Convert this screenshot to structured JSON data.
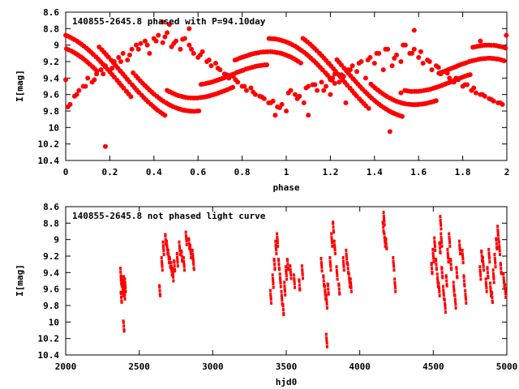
{
  "colors": {
    "series": "#ff0000",
    "axis": "#000000",
    "background": "#ffffff"
  },
  "chart_data": [
    {
      "type": "scatter",
      "title": "140855-2645.8 phased with P=94.10day",
      "xlabel": "phase",
      "ylabel": "I[mag]",
      "xlim": [
        0,
        2
      ],
      "ylim": [
        10.4,
        8.6
      ],
      "y_inverted": true,
      "xticks": [
        "0",
        "0.2",
        "0.4",
        "0.6",
        "0.8",
        "1",
        "1.2",
        "1.4",
        "1.6",
        "1.8",
        "2"
      ],
      "yticks": [
        "8.6",
        "8.8",
        "9",
        "9.2",
        "9.4",
        "9.6",
        "9.8",
        "10",
        "10.2",
        "10.4"
      ],
      "marker": "filled-circle",
      "series": [
        {
          "curve": {
            "period_x": 1.0,
            "mean": 9.38,
            "amplitude": 0.34,
            "min_phase": 0.5
          },
          "x": [
            0.0,
            0.02,
            0.04,
            0.06,
            0.08,
            0.1,
            0.12,
            0.14,
            0.16,
            0.18,
            0.2,
            0.22,
            0.24,
            0.26,
            0.28,
            0.3,
            0.32,
            0.34,
            0.36,
            0.38,
            0.4,
            0.42,
            0.44,
            0.46,
            0.48,
            0.5,
            0.52,
            0.54,
            0.56,
            0.58,
            0.6,
            0.62,
            0.64,
            0.66,
            0.68,
            0.7,
            0.72,
            0.74,
            0.76,
            0.78,
            0.8,
            0.82,
            0.84,
            0.86,
            0.88,
            0.9,
            0.92,
            0.94,
            0.96,
            0.98,
            1.0,
            1.02,
            1.04,
            1.06,
            1.08,
            1.1,
            1.12,
            1.14,
            1.16,
            1.18,
            1.2,
            1.22,
            1.24,
            1.26,
            1.28,
            1.3,
            1.32,
            1.34,
            1.36,
            1.38,
            1.4,
            1.42,
            1.44,
            1.46,
            1.48,
            1.5,
            1.52,
            1.54,
            1.56,
            1.58,
            1.6,
            1.62,
            1.64,
            1.66,
            1.68,
            1.7,
            1.72,
            1.74,
            1.76,
            1.78,
            1.8,
            1.82,
            1.84,
            1.86,
            1.88,
            1.9,
            1.92,
            1.94,
            1.96,
            1.98,
            0.01,
            0.05,
            0.09,
            0.13,
            0.17,
            0.21,
            0.25,
            0.29,
            0.33,
            0.37,
            0.41,
            0.45,
            0.49,
            0.53,
            0.57,
            0.61,
            0.65,
            0.69,
            0.73,
            0.77,
            0.81,
            0.85,
            0.89,
            0.93,
            0.97,
            1.01,
            1.05,
            1.09,
            1.13,
            1.17,
            1.21,
            1.25,
            1.29,
            1.33,
            1.37,
            1.41,
            1.45,
            1.49,
            1.53,
            1.57,
            1.61,
            1.65,
            1.69,
            1.73,
            1.77,
            1.81,
            1.85,
            1.89,
            1.93,
            1.97,
            0.18,
            0.47,
            0.44,
            0.56,
            1.47,
            1.58,
            1.88,
            1.52,
            1.1,
            1.2,
            1.27,
            0.95
          ],
          "y": [
            9.42,
            9.72,
            9.62,
            9.55,
            9.5,
            9.4,
            9.45,
            9.35,
            9.3,
            9.25,
            9.32,
            9.2,
            9.15,
            9.1,
            9.18,
            9.05,
            9.0,
            8.98,
            8.95,
            9.1,
            8.92,
            8.88,
            8.97,
            8.85,
            9.02,
            8.95,
            9.05,
            8.92,
            9.0,
            9.1,
            9.15,
            9.08,
            9.2,
            9.25,
            9.22,
            9.3,
            9.35,
            9.4,
            9.38,
            9.45,
            9.5,
            9.55,
            9.52,
            9.6,
            9.62,
            9.65,
            9.7,
            9.68,
            9.75,
            9.72,
            9.8,
            9.55,
            9.6,
            9.62,
            9.7,
            9.5,
            9.48,
            9.55,
            9.45,
            9.5,
            9.42,
            9.35,
            9.45,
            9.38,
            9.3,
            9.25,
            9.32,
            9.2,
            9.4,
            9.15,
            9.22,
            9.1,
            9.3,
            9.05,
            9.25,
            9.12,
            9.2,
            9.0,
            9.1,
            9.05,
            9.15,
            9.22,
            9.18,
            9.3,
            9.25,
            9.35,
            9.32,
            9.4,
            9.45,
            9.42,
            9.5,
            9.48,
            9.55,
            9.58,
            9.6,
            9.62,
            9.65,
            9.68,
            9.7,
            9.72,
            9.75,
            9.6,
            9.5,
            9.42,
            9.35,
            9.28,
            9.2,
            9.12,
            9.05,
            9.0,
            8.95,
            8.9,
            8.98,
            8.93,
            9.05,
            9.12,
            9.18,
            9.28,
            9.36,
            9.42,
            9.5,
            9.57,
            9.63,
            9.7,
            9.76,
            9.58,
            9.65,
            9.52,
            9.48,
            9.55,
            9.4,
            9.36,
            9.3,
            9.22,
            9.18,
            9.1,
            9.05,
            9.16,
            9.0,
            9.1,
            9.08,
            9.2,
            9.27,
            9.34,
            9.4,
            9.48,
            9.52,
            9.6,
            9.66,
            9.7,
            10.23,
            8.75,
            8.72,
            8.8,
            10.05,
            8.82,
            8.95,
            9.58,
            9.85,
            9.6,
            9.7,
            9.85
          ]
        }
      ]
    },
    {
      "type": "scatter",
      "title": "140855-2645.8 not phased light curve",
      "xlabel": "hjd0",
      "ylabel": "I[mag]",
      "xlim": [
        2000,
        5000
      ],
      "ylim": [
        10.4,
        8.6
      ],
      "y_inverted": true,
      "xticks": [
        "2000",
        "2500",
        "3000",
        "3500",
        "4000",
        "4500",
        "5000"
      ],
      "yticks": [
        "8.6",
        "8.8",
        "9",
        "9.2",
        "9.4",
        "9.6",
        "9.8",
        "10",
        "10.2",
        "10.4"
      ],
      "marker": "small-diamond",
      "series": [
        {
          "x": [
            2375,
            2380,
            2385,
            2390,
            2395,
            2400,
            2405,
            2378,
            2392,
            2398,
            2640,
            2655,
            2665,
            2680,
            2690,
            2700,
            2710,
            2720,
            2730,
            2740,
            2760,
            2775,
            2790,
            2805,
            2820,
            2840,
            2850,
            2865,
            2870,
            3395,
            3410,
            3420,
            3430,
            3440,
            3450,
            3460,
            3470,
            3480,
            3490,
            3500,
            3510,
            3530,
            3555,
            3590,
            3610,
            3740,
            3755,
            3765,
            3775,
            3785,
            3800,
            3810,
            3820,
            3830,
            3845,
            3860,
            3890,
            3910,
            3920,
            3930,
            3940,
            4160,
            4165,
            4170,
            4180,
            4230,
            4240,
            4490,
            4500,
            4510,
            4520,
            4530,
            4540,
            4545,
            4550,
            4555,
            4560,
            4570,
            4580,
            4590,
            4600,
            4610,
            4620,
            4640,
            4650,
            4660,
            4680,
            4700,
            4710,
            4720,
            4820,
            4830,
            4840,
            4860,
            4870,
            4880,
            4890,
            4900,
            4910,
            4920,
            4930,
            4940,
            4950,
            4960,
            4980,
            4990,
            2395,
            3775
          ],
          "y": [
            9.45,
            9.5,
            9.55,
            9.6,
            9.62,
            9.65,
            9.55,
            9.7,
            9.58,
            9.52,
            9.62,
            9.3,
            9.1,
            9.0,
            9.1,
            9.2,
            9.28,
            9.36,
            9.42,
            9.32,
            9.25,
            9.1,
            9.2,
            9.3,
            8.98,
            9.05,
            9.15,
            9.2,
            9.3,
            9.7,
            9.5,
            9.3,
            9.1,
            9.0,
            9.3,
            9.5,
            9.7,
            9.85,
            9.6,
            9.4,
            9.3,
            9.4,
            9.5,
            9.55,
            9.4,
            9.3,
            9.5,
            9.65,
            9.75,
            9.6,
            9.3,
            9.0,
            8.85,
            9.1,
            9.4,
            9.6,
            9.3,
            9.2,
            9.35,
            9.5,
            9.55,
            8.85,
            8.75,
            9.0,
            9.05,
            9.3,
            9.55,
            9.35,
            9.2,
            9.05,
            9.3,
            9.5,
            9.6,
            9.1,
            8.8,
            9.0,
            9.4,
            9.65,
            9.8,
            9.5,
            9.2,
            9.0,
            9.3,
            9.6,
            9.75,
            9.4,
            9.1,
            9.2,
            9.5,
            9.7,
            9.4,
            9.2,
            9.3,
            9.55,
            9.4,
            9.2,
            9.6,
            9.7,
            9.45,
            9.25,
            9.05,
            8.92,
            9.1,
            9.35,
            9.5,
            9.62,
            10.05,
            10.23
          ]
        }
      ]
    }
  ]
}
